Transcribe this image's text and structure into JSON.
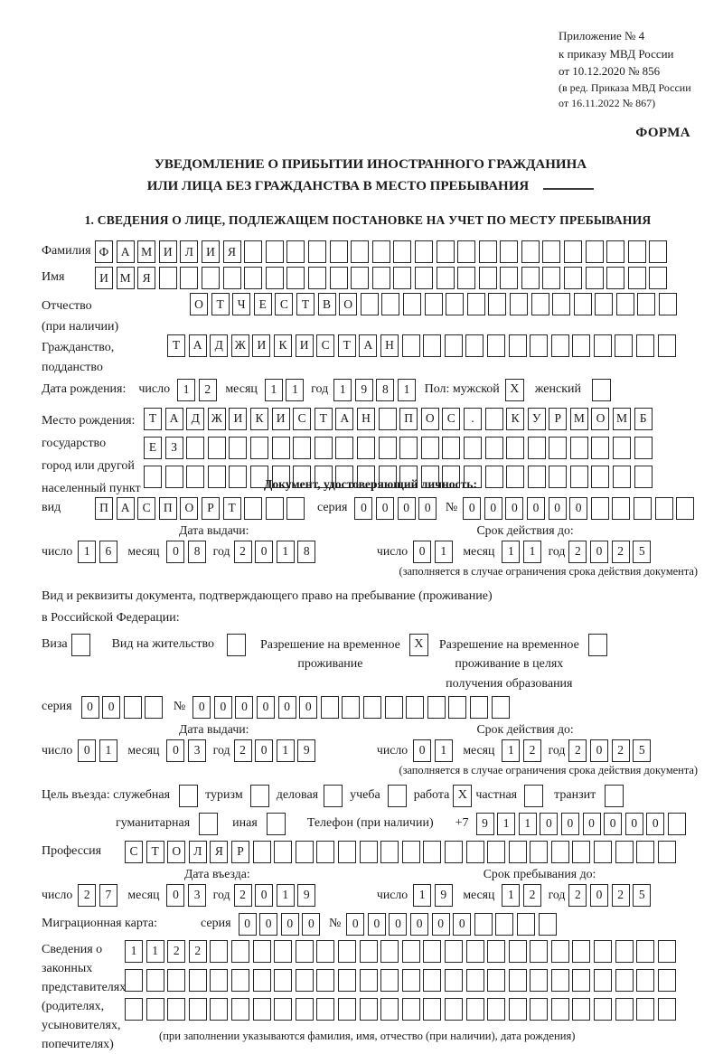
{
  "doc": {
    "annex_lines": [
      "Приложение № 4",
      "к приказу МВД России",
      "от 10.12.2020 № 856"
    ],
    "annex_note_lines": [
      "(в ред. Приказа МВД России",
      "от 16.11.2022 № 867)"
    ],
    "forma": "ФОРМА",
    "title_line1": "УВЕДОМЛЕНИЕ О ПРИБЫТИИ ИНОСТРАННОГО ГРАЖДАНИНА",
    "title_line2": "ИЛИ ЛИЦА БЕЗ ГРАЖДАНСТВА В МЕСТО ПРЕБЫВАНИЯ",
    "section1_title": "1. СВЕДЕНИЯ О ЛИЦЕ, ПОДЛЕЖАЩЕМ ПОСТАНОВКЕ НА УЧЕТ ПО МЕСТУ ПРЕБЫВАНИЯ"
  },
  "labels": {
    "surname": "Фамилия",
    "name": "Имя",
    "patronymic1": "Отчество",
    "patronymic2": "(при наличии)",
    "citizenship1": "Гражданство,",
    "citizenship2": "подданство",
    "birth_date": "Дата рождения:",
    "day": "число",
    "month": "месяц",
    "year": "год",
    "sex_male": "Пол: мужской",
    "sex_female": "женский",
    "birth_place1": "Место рождения:",
    "birth_place2": "государство",
    "birth_place3": "город или другой",
    "birth_place4": "населенный пункт",
    "identity_doc_header": "Документ, удостоверяющий личность:",
    "kind": "вид",
    "series": "серия",
    "number_sign": "№",
    "issue_date": "Дата выдачи:",
    "valid_until": "Срок действия до:",
    "restriction_note": "(заполняется в случае ограничения срока действия документа)",
    "residence_doc_line1": "Вид и реквизиты документа, подтверждающего право на пребывание (проживание)",
    "residence_doc_line2": "в Российской Федерации:",
    "visa": "Виза",
    "residence_permit": "Вид на жительство",
    "temp_residence1": "Разрешение на временное",
    "temp_residence2": "проживание",
    "temp_residence_edu1": "Разрешение на временное",
    "temp_residence_edu2": "проживание в целях",
    "temp_residence_edu3": "получения образования",
    "purpose_official": "Цель въезда: служебная",
    "tourism": "туризм",
    "business": "деловая",
    "study": "учеба",
    "work": "работа",
    "private": "частная",
    "transit": "транзит",
    "humanitarian": "гуманитарная",
    "other": "иная",
    "phone": "Телефон (при наличии)",
    "phone_prefix": "+7",
    "profession": "Профессия",
    "entry_date": "Дата въезда:",
    "stay_until": "Срок пребывания до:",
    "migration_card": "Миграционная карта:",
    "reps1": "Сведения о",
    "reps2": "законных",
    "reps3": "представителях",
    "reps4": "(родителях,",
    "reps5": "усыновителях,",
    "reps6": "попечителях)",
    "reps_note": "(при заполнении указываются фамилия, имя, отчество (при наличии), дата рождения)"
  },
  "fields": {
    "surname": {
      "value": "ФАМИЛИЯ",
      "count": 27
    },
    "name": {
      "value": "ИМЯ",
      "count": 27
    },
    "patronymic": {
      "value": "ОТЧЕСТВО",
      "count": 23
    },
    "citizenship": {
      "value": "ТАДЖИКИСТАН",
      "count": 24
    },
    "birth_day": {
      "value": "12",
      "count": 2
    },
    "birth_month": {
      "value": "11",
      "count": 2
    },
    "birth_year": {
      "value": "1981",
      "count": 4
    },
    "sex": {
      "male": "X",
      "female": ""
    },
    "birth_place_row1": {
      "value": "ТАДЖИКИСТАН ПОС. КУРМОМБ",
      "count": 24
    },
    "birth_place_row2": {
      "value": "ЕЗ",
      "count": 24
    },
    "birth_place_row3": {
      "value": "",
      "count": 24
    },
    "id_kind": {
      "value": "ПАСПОРТ",
      "count": 10
    },
    "id_series": {
      "value": "0000",
      "count": 4
    },
    "id_number": {
      "value": "000000",
      "count": 11
    },
    "id_issue_day": {
      "value": "16",
      "count": 2
    },
    "id_issue_month": {
      "value": "08",
      "count": 2
    },
    "id_issue_year": {
      "value": "2018",
      "count": 4
    },
    "id_valid_day": {
      "value": "01",
      "count": 2
    },
    "id_valid_month": {
      "value": "11",
      "count": 2
    },
    "id_valid_year": {
      "value": "2025",
      "count": 4
    },
    "residence": {
      "visa": "",
      "residence_permit": "",
      "temp_residence": "X",
      "temp_residence_edu": ""
    },
    "res_series": {
      "value": "00",
      "count": 4
    },
    "res_number": {
      "value": "000000",
      "count": 15
    },
    "res_issue_day": {
      "value": "01",
      "count": 2
    },
    "res_issue_month": {
      "value": "03",
      "count": 2
    },
    "res_issue_year": {
      "value": "2019",
      "count": 4
    },
    "res_valid_day": {
      "value": "01",
      "count": 2
    },
    "res_valid_month": {
      "value": "12",
      "count": 2
    },
    "res_valid_year": {
      "value": "2025",
      "count": 4
    },
    "purpose": {
      "official": "",
      "tourism": "",
      "business": "",
      "study": "",
      "work": "X",
      "private": "",
      "transit": "",
      "humanitarian": "",
      "other": ""
    },
    "phone": {
      "value": "911000000",
      "count": 10
    },
    "profession": {
      "value": "СТОЛЯР",
      "count": 26
    },
    "entry_day": {
      "value": "27",
      "count": 2
    },
    "entry_month": {
      "value": "03",
      "count": 2
    },
    "entry_year": {
      "value": "2019",
      "count": 4
    },
    "stay_day": {
      "value": "19",
      "count": 2
    },
    "stay_month": {
      "value": "12",
      "count": 2
    },
    "stay_year": {
      "value": "2025",
      "count": 4
    },
    "mig_series": {
      "value": "0000",
      "count": 4
    },
    "mig_number": {
      "value": "000000",
      "count": 10
    },
    "reps_row1": {
      "value": "1122",
      "count": 26
    },
    "reps_row2": {
      "value": "",
      "count": 26
    },
    "reps_row3": {
      "value": "",
      "count": 26
    }
  },
  "colors": {
    "ink": "#1b1b1b",
    "background": "#ffffff"
  }
}
